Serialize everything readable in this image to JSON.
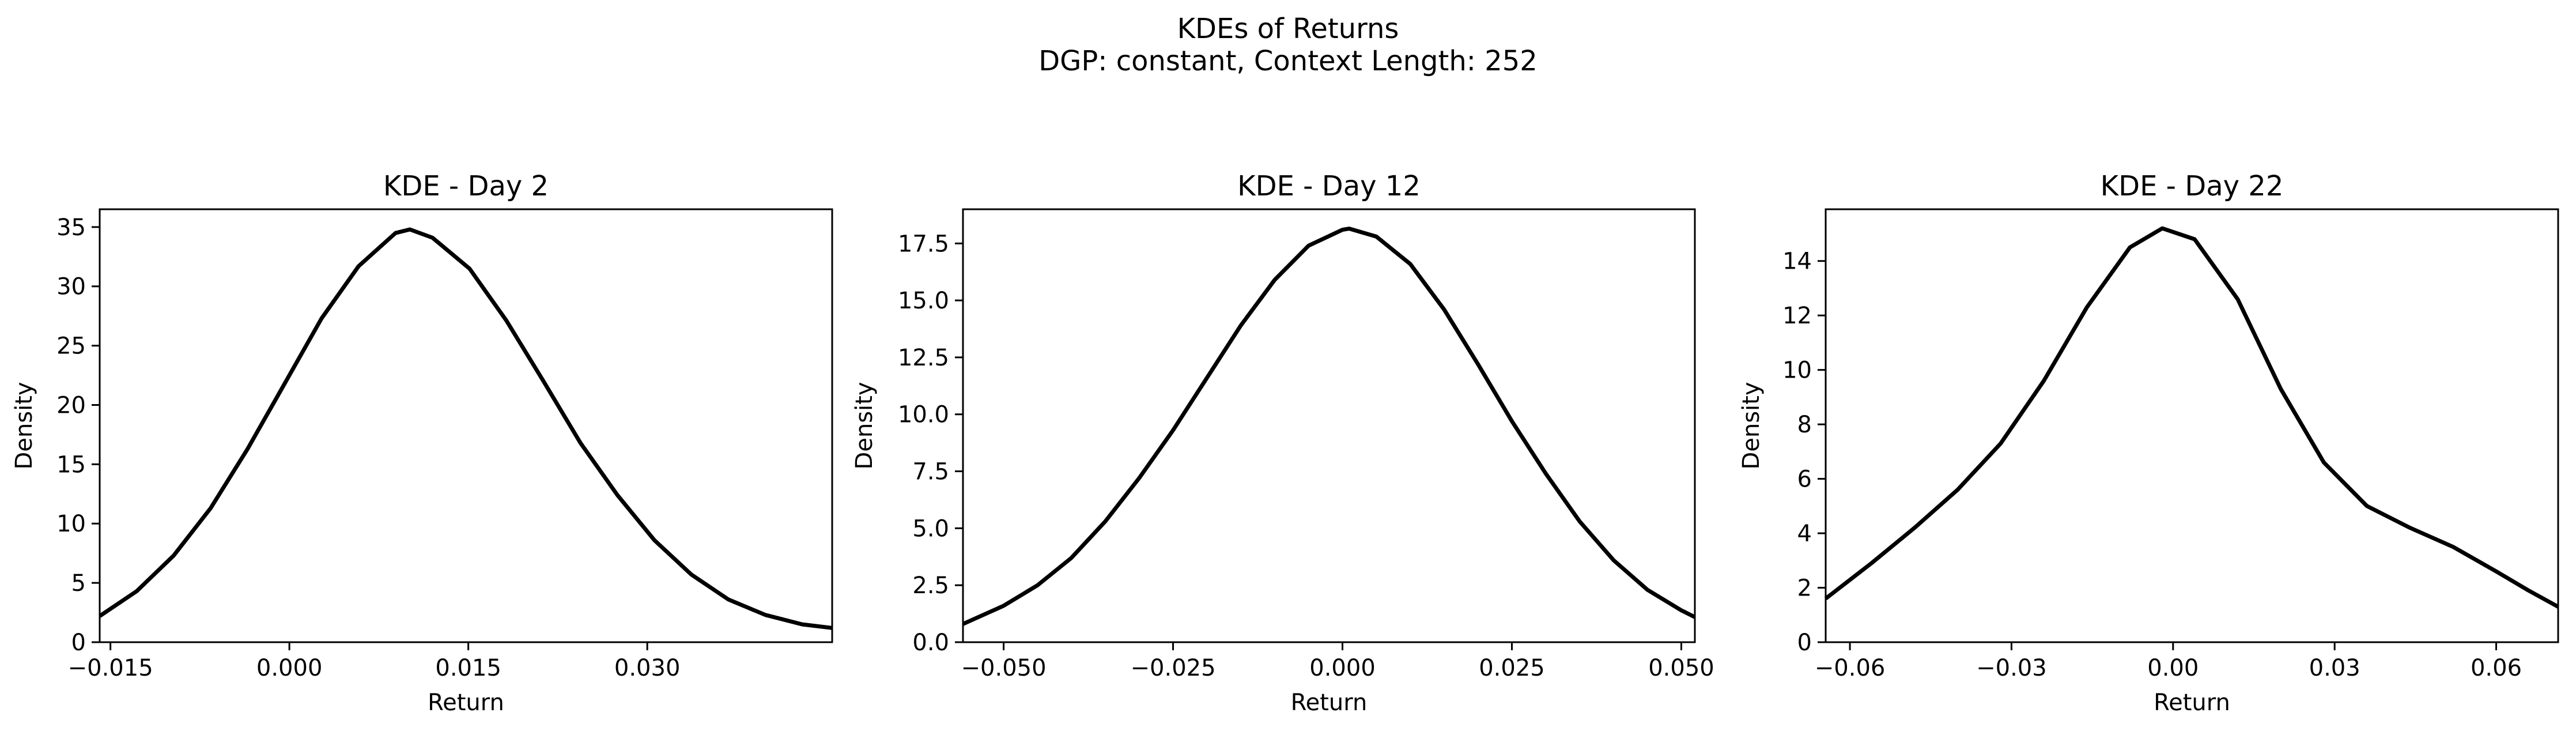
{
  "figure": {
    "title_line1": "KDEs of Returns",
    "title_line2": "DGP: constant, Context Length: 252",
    "line_color": "#000000"
  },
  "chart_data": [
    {
      "type": "line",
      "title": "KDE - Day 2",
      "xlabel": "Return",
      "ylabel": "Density",
      "xlim": [
        -0.0159,
        0.0455
      ],
      "ylim": [
        0,
        36.5
      ],
      "xticks": [
        -0.015,
        0.0,
        0.015,
        0.03
      ],
      "xtick_labels": [
        "−0.015",
        "0.000",
        "0.015",
        "0.030"
      ],
      "yticks": [
        0,
        5,
        10,
        15,
        20,
        25,
        30,
        35
      ],
      "ytick_labels": [
        "0",
        "5",
        "10",
        "15",
        "20",
        "25",
        "30",
        "35"
      ],
      "grid": false,
      "x": [
        -0.0159,
        -0.0128,
        -0.0097,
        -0.0066,
        -0.0035,
        -0.0004,
        0.0027,
        0.0058,
        0.0089,
        0.0101,
        0.012,
        0.0151,
        0.0182,
        0.0213,
        0.0244,
        0.0275,
        0.0306,
        0.0337,
        0.0368,
        0.0399,
        0.043,
        0.0455
      ],
      "y": [
        2.2,
        4.3,
        7.3,
        11.3,
        16.3,
        21.8,
        27.3,
        31.7,
        34.5,
        34.8,
        34.1,
        31.5,
        27.1,
        22.0,
        16.8,
        12.4,
        8.6,
        5.7,
        3.6,
        2.3,
        1.5,
        1.2
      ]
    },
    {
      "type": "line",
      "title": "KDE - Day 12",
      "xlabel": "Return",
      "ylabel": "Density",
      "xlim": [
        -0.056,
        0.052
      ],
      "ylim": [
        0,
        19.0
      ],
      "xticks": [
        -0.05,
        -0.025,
        0.0,
        0.025,
        0.05
      ],
      "xtick_labels": [
        "−0.050",
        "−0.025",
        "0.000",
        "0.025",
        "0.050"
      ],
      "yticks": [
        0,
        2.5,
        5,
        7.5,
        10,
        12.5,
        15,
        17.5
      ],
      "ytick_labels": [
        "0.0",
        "2.5",
        "5.0",
        "7.5",
        "10.0",
        "12.5",
        "15.0",
        "17.5"
      ],
      "grid": false,
      "x": [
        -0.056,
        -0.05,
        -0.045,
        -0.04,
        -0.035,
        -0.03,
        -0.025,
        -0.02,
        -0.015,
        -0.01,
        -0.005,
        0.0,
        0.001,
        0.005,
        0.01,
        0.015,
        0.02,
        0.025,
        0.03,
        0.035,
        0.04,
        0.045,
        0.05,
        0.052
      ],
      "y": [
        0.8,
        1.6,
        2.5,
        3.7,
        5.3,
        7.2,
        9.3,
        11.6,
        13.9,
        15.9,
        17.4,
        18.1,
        18.15,
        17.8,
        16.6,
        14.6,
        12.2,
        9.7,
        7.4,
        5.3,
        3.6,
        2.3,
        1.4,
        1.1
      ]
    },
    {
      "type": "line",
      "title": "KDE - Day 22",
      "xlabel": "Return",
      "ylabel": "Density",
      "xlim": [
        -0.0645,
        0.0715
      ],
      "ylim": [
        0,
        15.9
      ],
      "xticks": [
        -0.06,
        -0.03,
        0.0,
        0.03,
        0.06
      ],
      "xtick_labels": [
        "−0.06",
        "−0.03",
        "0.00",
        "0.03",
        "0.06"
      ],
      "yticks": [
        0,
        2,
        4,
        6,
        8,
        10,
        12,
        14
      ],
      "ytick_labels": [
        "0",
        "2",
        "4",
        "6",
        "8",
        "10",
        "12",
        "14"
      ],
      "grid": false,
      "x": [
        -0.0645,
        -0.056,
        -0.048,
        -0.04,
        -0.032,
        -0.024,
        -0.016,
        -0.008,
        -0.002,
        0.004,
        0.012,
        0.02,
        0.028,
        0.036,
        0.044,
        0.052,
        0.06,
        0.066,
        0.0715
      ],
      "y": [
        1.6,
        2.9,
        4.2,
        5.6,
        7.3,
        9.6,
        12.3,
        14.5,
        15.2,
        14.8,
        12.6,
        9.3,
        6.6,
        5.0,
        4.2,
        3.5,
        2.6,
        1.9,
        1.3
      ]
    }
  ]
}
